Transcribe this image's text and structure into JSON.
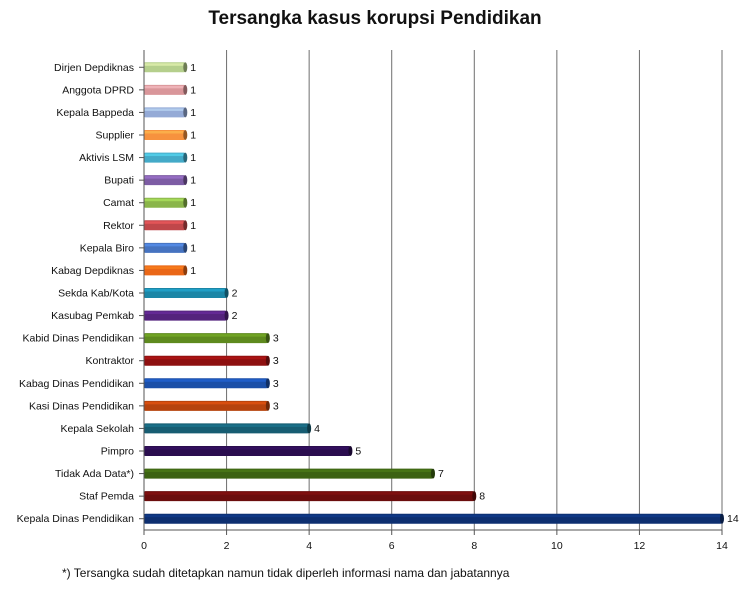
{
  "chart_data": {
    "type": "bar",
    "orientation": "horizontal",
    "title": "Tersangka kasus korupsi Pendidikan",
    "xlabel": "",
    "ylabel": "",
    "xlim": [
      0,
      14
    ],
    "xticks": [
      "0",
      "2",
      "4",
      "6",
      "8",
      "10",
      "12",
      "14"
    ],
    "grid": "vertical major gridlines",
    "legend": "none",
    "categories": [
      "Dirjen Depdiknas",
      "Anggota DPRD",
      "Kepala Bappeda",
      "Supplier",
      "Aktivis LSM",
      "Bupati",
      "Camat",
      "Rektor",
      "Kepala Biro",
      "Kabag Depdiknas",
      "Sekda Kab/Kota",
      "Kasubag Pemkab",
      "Kabid Dinas Pendidikan",
      "Kontraktor",
      "Kabag Dinas Pendidikan",
      "Kasi Dinas Pendidikan",
      "Kepala Sekolah",
      "Pimpro",
      "Tidak Ada Data*)",
      "Staf Pemda",
      "Kepala Dinas Pendidikan"
    ],
    "values": [
      1,
      1,
      1,
      1,
      1,
      1,
      1,
      1,
      1,
      1,
      2,
      2,
      3,
      3,
      3,
      3,
      4,
      5,
      7,
      8,
      14
    ],
    "data_labels": [
      "1",
      "1",
      "1",
      "1",
      "1",
      "1",
      "1",
      "1",
      "1",
      "1",
      "2",
      "2",
      "3",
      "3",
      "3",
      "3",
      "4",
      "5",
      "7",
      "8",
      "14"
    ],
    "colors": [
      "#b5cf8c",
      "#d9969a",
      "#94aad6",
      "#f7923e",
      "#44aac8",
      "#7d5ca4",
      "#8ab54a",
      "#c0474a",
      "#4673c0",
      "#ea6717",
      "#1b86a6",
      "#54237d",
      "#5e8a1e",
      "#8e1010",
      "#1b4fa8",
      "#b6430d",
      "#175d72",
      "#2a0d4e",
      "#3c6212",
      "#6b0d0d",
      "#0d2f70"
    ]
  },
  "footnote": "*) Tersangka sudah ditetapkan namun tidak diperleh informasi nama dan jabatannya"
}
